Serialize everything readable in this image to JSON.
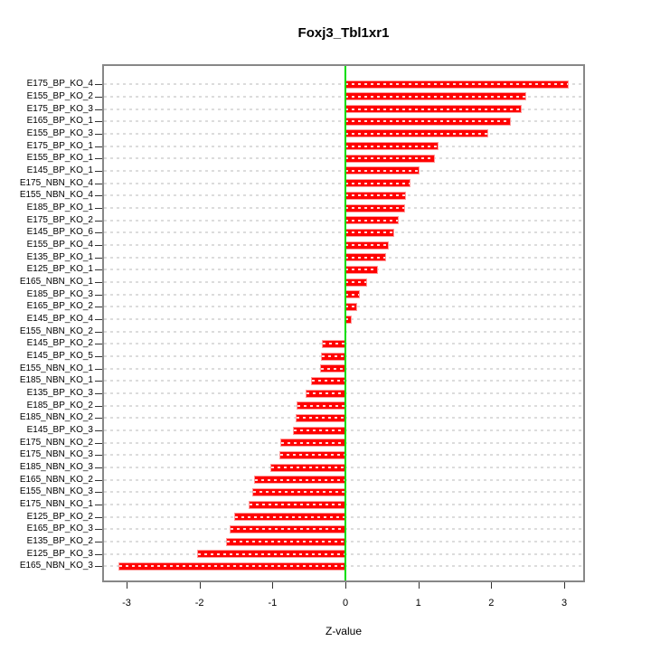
{
  "title": "Foxj3_Tbl1xr1",
  "chart_data": {
    "type": "bar",
    "orientation": "horizontal",
    "title": "Foxj3_Tbl1xr1",
    "xlabel": "Z-value",
    "ylabel": "",
    "xlim": [
      -3.33,
      3.28
    ],
    "x_ticks": [
      -3,
      -2,
      -1,
      0,
      1,
      2,
      3
    ],
    "grid": true,
    "legend": "none",
    "zero_reference_line": 0,
    "categories": [
      "E175_BP_KO_4",
      "E155_BP_KO_2",
      "E175_BP_KO_3",
      "E165_BP_KO_1",
      "E155_BP_KO_3",
      "E175_BP_KO_1",
      "E155_BP_KO_1",
      "E145_BP_KO_1",
      "E175_NBN_KO_4",
      "E155_NBN_KO_4",
      "E185_BP_KO_1",
      "E175_BP_KO_2",
      "E145_BP_KO_6",
      "E155_BP_KO_4",
      "E135_BP_KO_1",
      "E125_BP_KO_1",
      "E165_NBN_KO_1",
      "E185_BP_KO_3",
      "E165_BP_KO_2",
      "E145_BP_KO_4",
      "E155_NBN_KO_2",
      "E145_BP_KO_2",
      "E145_BP_KO_5",
      "E155_NBN_KO_1",
      "E185_NBN_KO_1",
      "E135_BP_KO_3",
      "E185_BP_KO_2",
      "E185_NBN_KO_2",
      "E145_BP_KO_3",
      "E175_NBN_KO_2",
      "E175_NBN_KO_3",
      "E185_NBN_KO_3",
      "E165_NBN_KO_2",
      "E155_NBN_KO_3",
      "E175_NBN_KO_1",
      "E125_BP_KO_2",
      "E165_BP_KO_3",
      "E135_BP_KO_2",
      "E125_BP_KO_3",
      "E165_NBN_KO_3"
    ],
    "values": [
      3.05,
      2.47,
      2.4,
      2.26,
      1.95,
      1.26,
      1.21,
      1.01,
      0.88,
      0.82,
      0.81,
      0.72,
      0.66,
      0.58,
      0.54,
      0.43,
      0.29,
      0.18,
      0.15,
      0.07,
      0.0,
      -0.31,
      -0.32,
      -0.34,
      -0.46,
      -0.53,
      -0.66,
      -0.67,
      -0.71,
      -0.88,
      -0.89,
      -1.02,
      -1.24,
      -1.27,
      -1.32,
      -1.51,
      -1.58,
      -1.63,
      -2.02,
      -3.1
    ],
    "bar_color": "#ff0000",
    "zero_line_color": "#00dd00",
    "grid_color": "#dcdcdc",
    "box_color": "#878787",
    "text_color": "#000000"
  }
}
